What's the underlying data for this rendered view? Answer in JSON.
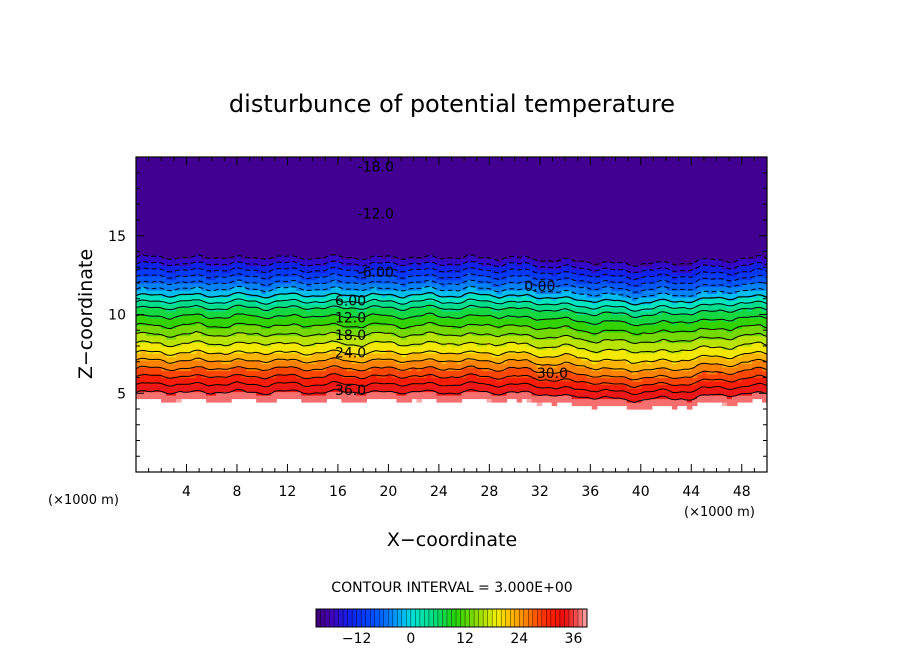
{
  "chart_data": {
    "type": "contour",
    "title": "disturbunce of potential temperature",
    "xlabel": "X−coordinate",
    "ylabel": "Z−coordinate",
    "x_unit": "(×1000 m)",
    "y_unit": "(×1000 m)",
    "xlim": [
      0,
      50
    ],
    "ylim": [
      0,
      20
    ],
    "x_ticks": [
      4,
      8,
      12,
      16,
      20,
      24,
      28,
      32,
      36,
      40,
      44,
      48
    ],
    "y_ticks": [
      5,
      10,
      15
    ],
    "contour_interval_label": "CONTOUR INTERVAL = 3.000E+00",
    "contour_interval": 3,
    "value_range": [
      -21,
      39
    ],
    "contour_labels": [
      {
        "text": "-18.0",
        "x": 19,
        "z": 19.4
      },
      {
        "text": "-12.0",
        "x": 19,
        "z": 16.4
      },
      {
        "text": "-6.00",
        "x": 19,
        "z": 12.7
      },
      {
        "text": "0.00",
        "x": 32,
        "z": 11.8
      },
      {
        "text": "6.00",
        "x": 17,
        "z": 10.9
      },
      {
        "text": "12.0",
        "x": 17,
        "z": 9.8
      },
      {
        "text": "18.0",
        "x": 17,
        "z": 8.7
      },
      {
        "text": "24.0",
        "x": 17,
        "z": 7.6
      },
      {
        "text": "30.0",
        "x": 33,
        "z": 6.3
      },
      {
        "text": "36.0",
        "x": 17,
        "z": 5.2
      }
    ],
    "colorbar": {
      "ticks": [
        -12,
        0,
        12,
        24,
        36
      ],
      "min": -21,
      "max": 39
    },
    "fields": {
      "ground_top_z": 4.5,
      "description_free": ""
    }
  }
}
